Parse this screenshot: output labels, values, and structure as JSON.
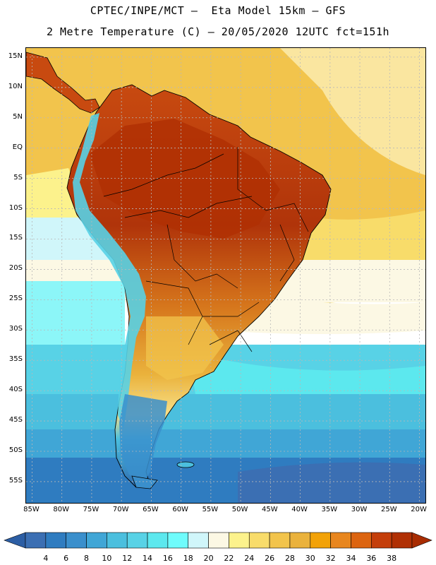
{
  "title_line1": "CPTEC/INPE/MCT –  Eta Model 15km – GFS",
  "title_line2": "2 Metre Temperature (C) – 20/05/2020 12UTC fct=151h",
  "map": {
    "region": "South America",
    "variable": "2 Metre Temperature",
    "units": "C",
    "lon_range": [
      -86,
      -19
    ],
    "lat_range": [
      -58.5,
      16.5
    ],
    "lat_labels": [
      "15N",
      "10N",
      "5N",
      "EQ",
      "5S",
      "10S",
      "15S",
      "20S",
      "25S",
      "30S",
      "35S",
      "40S",
      "45S",
      "50S",
      "55S"
    ],
    "lon_labels": [
      "85W",
      "80W",
      "75W",
      "70W",
      "65W",
      "60W",
      "55W",
      "50W",
      "45W",
      "40W",
      "35W",
      "30W",
      "25W",
      "20W"
    ]
  },
  "colorbar": {
    "labels": [
      "4",
      "6",
      "8",
      "10",
      "12",
      "14",
      "16",
      "18",
      "20",
      "22",
      "24",
      "26",
      "28",
      "30",
      "32",
      "34",
      "36",
      "38"
    ],
    "colors": [
      "#3b6fb3",
      "#2f7cc0",
      "#3a8fcc",
      "#40a6d6",
      "#4bbfde",
      "#58d2e6",
      "#5ce8ee",
      "#6ffcfc",
      "#d0f6fa",
      "#fcf8e4",
      "#fcf28c",
      "#f8dc6a",
      "#f2c44c",
      "#eab23c",
      "#f2a208",
      "#e8861e",
      "#dc6410",
      "#c43e0a",
      "#b03004"
    ],
    "low_color": "#2c5ea4",
    "high_color": "#a82c02"
  },
  "colors": {
    "frame": "#000000",
    "grid": "#b8b8b8"
  }
}
